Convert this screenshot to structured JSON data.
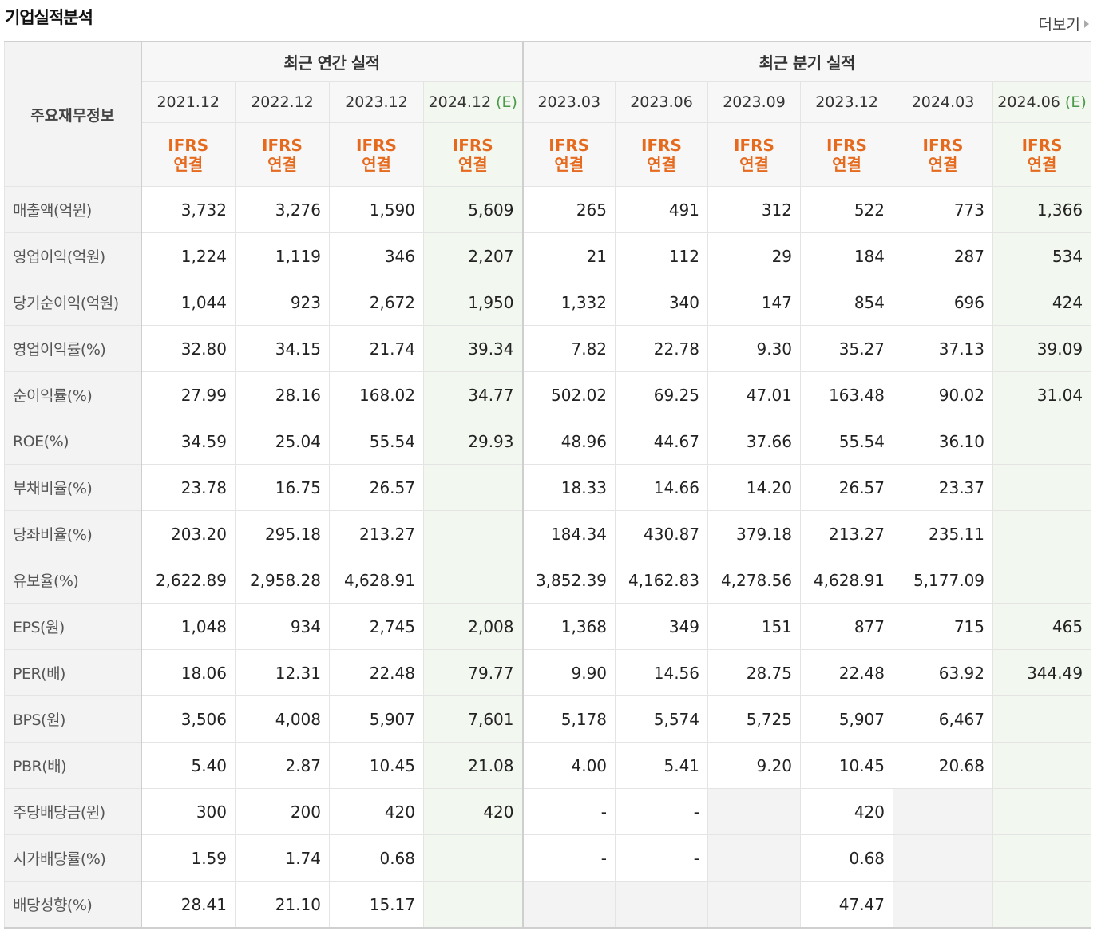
{
  "header": {
    "title": "기업실적분석",
    "more_label": "더보기"
  },
  "table": {
    "corner_label": "주요재무정보",
    "group_annual": "최근 연간 실적",
    "group_quarter": "최근 분기 실적",
    "periods": [
      {
        "label": "2021.12",
        "est": ""
      },
      {
        "label": "2022.12",
        "est": ""
      },
      {
        "label": "2023.12",
        "est": ""
      },
      {
        "label": "2024.12",
        "est": "(E)"
      },
      {
        "label": "2023.03",
        "est": ""
      },
      {
        "label": "2023.06",
        "est": ""
      },
      {
        "label": "2023.09",
        "est": ""
      },
      {
        "label": "2023.12",
        "est": ""
      },
      {
        "label": "2024.03",
        "est": ""
      },
      {
        "label": "2024.06",
        "est": "(E)"
      }
    ],
    "ifrs_line1": "IFRS",
    "ifrs_line2": "연결",
    "rows": [
      {
        "label": "매출액(억원)",
        "values": [
          "3,732",
          "3,276",
          "1,590",
          "5,609",
          "265",
          "491",
          "312",
          "522",
          "773",
          "1,366"
        ]
      },
      {
        "label": "영업이익(억원)",
        "values": [
          "1,224",
          "1,119",
          "346",
          "2,207",
          "21",
          "112",
          "29",
          "184",
          "287",
          "534"
        ]
      },
      {
        "label": "당기순이익(억원)",
        "values": [
          "1,044",
          "923",
          "2,672",
          "1,950",
          "1,332",
          "340",
          "147",
          "854",
          "696",
          "424"
        ]
      },
      {
        "label": "영업이익률(%)",
        "values": [
          "32.80",
          "34.15",
          "21.74",
          "39.34",
          "7.82",
          "22.78",
          "9.30",
          "35.27",
          "37.13",
          "39.09"
        ]
      },
      {
        "label": "순이익률(%)",
        "values": [
          "27.99",
          "28.16",
          "168.02",
          "34.77",
          "502.02",
          "69.25",
          "47.01",
          "163.48",
          "90.02",
          "31.04"
        ]
      },
      {
        "label": "ROE(%)",
        "values": [
          "34.59",
          "25.04",
          "55.54",
          "29.93",
          "48.96",
          "44.67",
          "37.66",
          "55.54",
          "36.10",
          ""
        ]
      },
      {
        "label": "부채비율(%)",
        "values": [
          "23.78",
          "16.75",
          "26.57",
          "",
          "18.33",
          "14.66",
          "14.20",
          "26.57",
          "23.37",
          ""
        ]
      },
      {
        "label": "당좌비율(%)",
        "values": [
          "203.20",
          "295.18",
          "213.27",
          "",
          "184.34",
          "430.87",
          "379.18",
          "213.27",
          "235.11",
          ""
        ]
      },
      {
        "label": "유보율(%)",
        "values": [
          "2,622.89",
          "2,958.28",
          "4,628.91",
          "",
          "3,852.39",
          "4,162.83",
          "4,278.56",
          "4,628.91",
          "5,177.09",
          ""
        ]
      },
      {
        "label": "EPS(원)",
        "values": [
          "1,048",
          "934",
          "2,745",
          "2,008",
          "1,368",
          "349",
          "151",
          "877",
          "715",
          "465"
        ]
      },
      {
        "label": "PER(배)",
        "values": [
          "18.06",
          "12.31",
          "22.48",
          "79.77",
          "9.90",
          "14.56",
          "28.75",
          "22.48",
          "63.92",
          "344.49"
        ]
      },
      {
        "label": "BPS(원)",
        "values": [
          "3,506",
          "4,008",
          "5,907",
          "7,601",
          "5,178",
          "5,574",
          "5,725",
          "5,907",
          "6,467",
          ""
        ]
      },
      {
        "label": "PBR(배)",
        "values": [
          "5.40",
          "2.87",
          "10.45",
          "21.08",
          "4.00",
          "5.41",
          "9.20",
          "10.45",
          "20.68",
          ""
        ]
      },
      {
        "label": "주당배당금(원)",
        "values": [
          "300",
          "200",
          "420",
          "420",
          "-",
          "-",
          "",
          "420",
          "",
          ""
        ]
      },
      {
        "label": "시가배당률(%)",
        "values": [
          "1.59",
          "1.74",
          "0.68",
          "",
          "-",
          "-",
          "",
          "0.68",
          "",
          ""
        ]
      },
      {
        "label": "배당성향(%)",
        "values": [
          "28.41",
          "21.10",
          "15.17",
          "",
          "",
          "",
          "",
          "47.47",
          "",
          ""
        ]
      }
    ]
  }
}
